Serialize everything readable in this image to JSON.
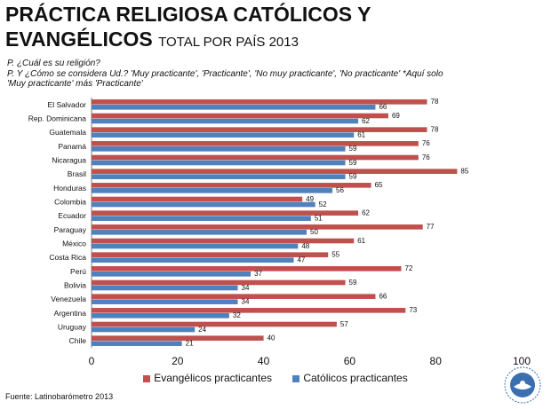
{
  "header": {
    "title_line1": "PRÁCTICA RELIGIOSA CATÓLICOS Y",
    "title_line2": "EVANGÉLICOS",
    "subtitle": "TOTAL POR PAÍS 2013",
    "question1": "P. ¿Cuál  es su religión?",
    "question2": "P. Y ¿Cómo  se considera Ud.? 'Muy practicante', 'Practicante', 'No muy practicante', 'No practicante' *Aquí solo",
    "question3": "'Muy practicante' más  'Practicante'"
  },
  "footer": {
    "source": "Fuente:  Latinobarómetro   2013"
  },
  "logo": {
    "icon": "latinobarometro-logo-icon"
  },
  "colors": {
    "evangelicos": "#c0504d",
    "catolicos": "#4f81bd"
  },
  "chart_data": {
    "type": "bar",
    "orientation": "horizontal",
    "categories": [
      "El Salvador",
      "Rep. Dominicana",
      "Guatemala",
      "Panamá",
      "Nicaragua",
      "Brasil",
      "Honduras",
      "Colombia",
      "Ecuador",
      "Paraguay",
      "México",
      "Costa Rica",
      "Perú",
      "Bolivia",
      "Venezuela",
      "Argentina",
      "Uruguay",
      "Chile"
    ],
    "series": [
      {
        "name": "Evangélicos practicantes",
        "values": [
          78,
          69,
          78,
          76,
          76,
          85,
          65,
          49,
          62,
          77,
          61,
          55,
          72,
          59,
          66,
          73,
          57,
          40
        ]
      },
      {
        "name": "Católicos practicantes",
        "values": [
          66,
          62,
          61,
          59,
          59,
          59,
          56,
          52,
          51,
          50,
          48,
          47,
          37,
          34,
          34,
          32,
          24,
          21
        ]
      }
    ],
    "xlim": [
      0,
      100
    ],
    "xticks": [
      0,
      20,
      40,
      60,
      80,
      100
    ],
    "legend": "bottom"
  }
}
